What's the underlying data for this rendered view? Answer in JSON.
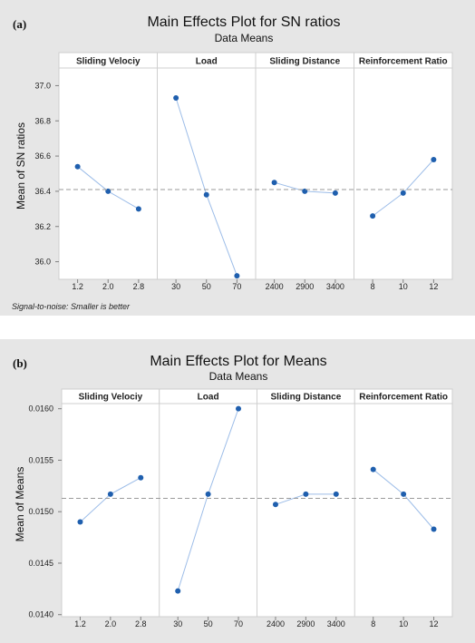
{
  "panels": [
    {
      "label": "(a)",
      "footnote": "Signal-to-noise: Smaller is better"
    },
    {
      "label": "(b)",
      "footnote": ""
    }
  ],
  "colors": {
    "line": "#9dbde8",
    "point": "#1f5fae",
    "mean_line": "#9a9a9a"
  },
  "chart_data": [
    {
      "type": "line",
      "title": "Main Effects Plot for SN ratios",
      "subtitle": "Data Means",
      "ylabel": "Mean of SN ratios",
      "ylim": [
        35.9,
        37.1
      ],
      "yticks": [
        36.0,
        36.2,
        36.4,
        36.6,
        36.8,
        37.0
      ],
      "ytick_labels": [
        "36.0",
        "36.2",
        "36.4",
        "36.6",
        "36.8",
        "37.0"
      ],
      "mean": 36.41,
      "factors": [
        {
          "name": "Sliding Velociy",
          "categories": [
            "1.2",
            "2.0",
            "2.8"
          ],
          "values": [
            36.54,
            36.4,
            36.3
          ]
        },
        {
          "name": "Load",
          "categories": [
            "30",
            "50",
            "70"
          ],
          "values": [
            36.93,
            36.38,
            35.92
          ]
        },
        {
          "name": "Sliding Distance",
          "categories": [
            "2400",
            "2900",
            "3400"
          ],
          "values": [
            36.45,
            36.4,
            36.39
          ]
        },
        {
          "name": "Reinforcement Ratio",
          "categories": [
            "8",
            "10",
            "12"
          ],
          "values": [
            36.26,
            36.39,
            36.58
          ]
        }
      ]
    },
    {
      "type": "line",
      "title": "Main Effects Plot for Means",
      "subtitle": "Data Means",
      "ylabel": "Mean of Means",
      "ylim": [
        0.01398,
        0.01605
      ],
      "yticks": [
        0.014,
        0.0145,
        0.015,
        0.0155,
        0.016
      ],
      "ytick_labels": [
        "0.0140",
        "0.0145",
        "0.0150",
        "0.0155",
        "0.0160"
      ],
      "mean": 0.01513,
      "factors": [
        {
          "name": "Sliding Velociy",
          "categories": [
            "1.2",
            "2.0",
            "2.8"
          ],
          "values": [
            0.0149,
            0.01517,
            0.01533
          ]
        },
        {
          "name": "Load",
          "categories": [
            "30",
            "50",
            "70"
          ],
          "values": [
            0.01423,
            0.01517,
            0.016
          ]
        },
        {
          "name": "Sliding Distance",
          "categories": [
            "2400",
            "2900",
            "3400"
          ],
          "values": [
            0.01507,
            0.01517,
            0.01517
          ]
        },
        {
          "name": "Reinforcement Ratio",
          "categories": [
            "8",
            "10",
            "12"
          ],
          "values": [
            0.01541,
            0.01517,
            0.01483
          ]
        }
      ]
    }
  ]
}
